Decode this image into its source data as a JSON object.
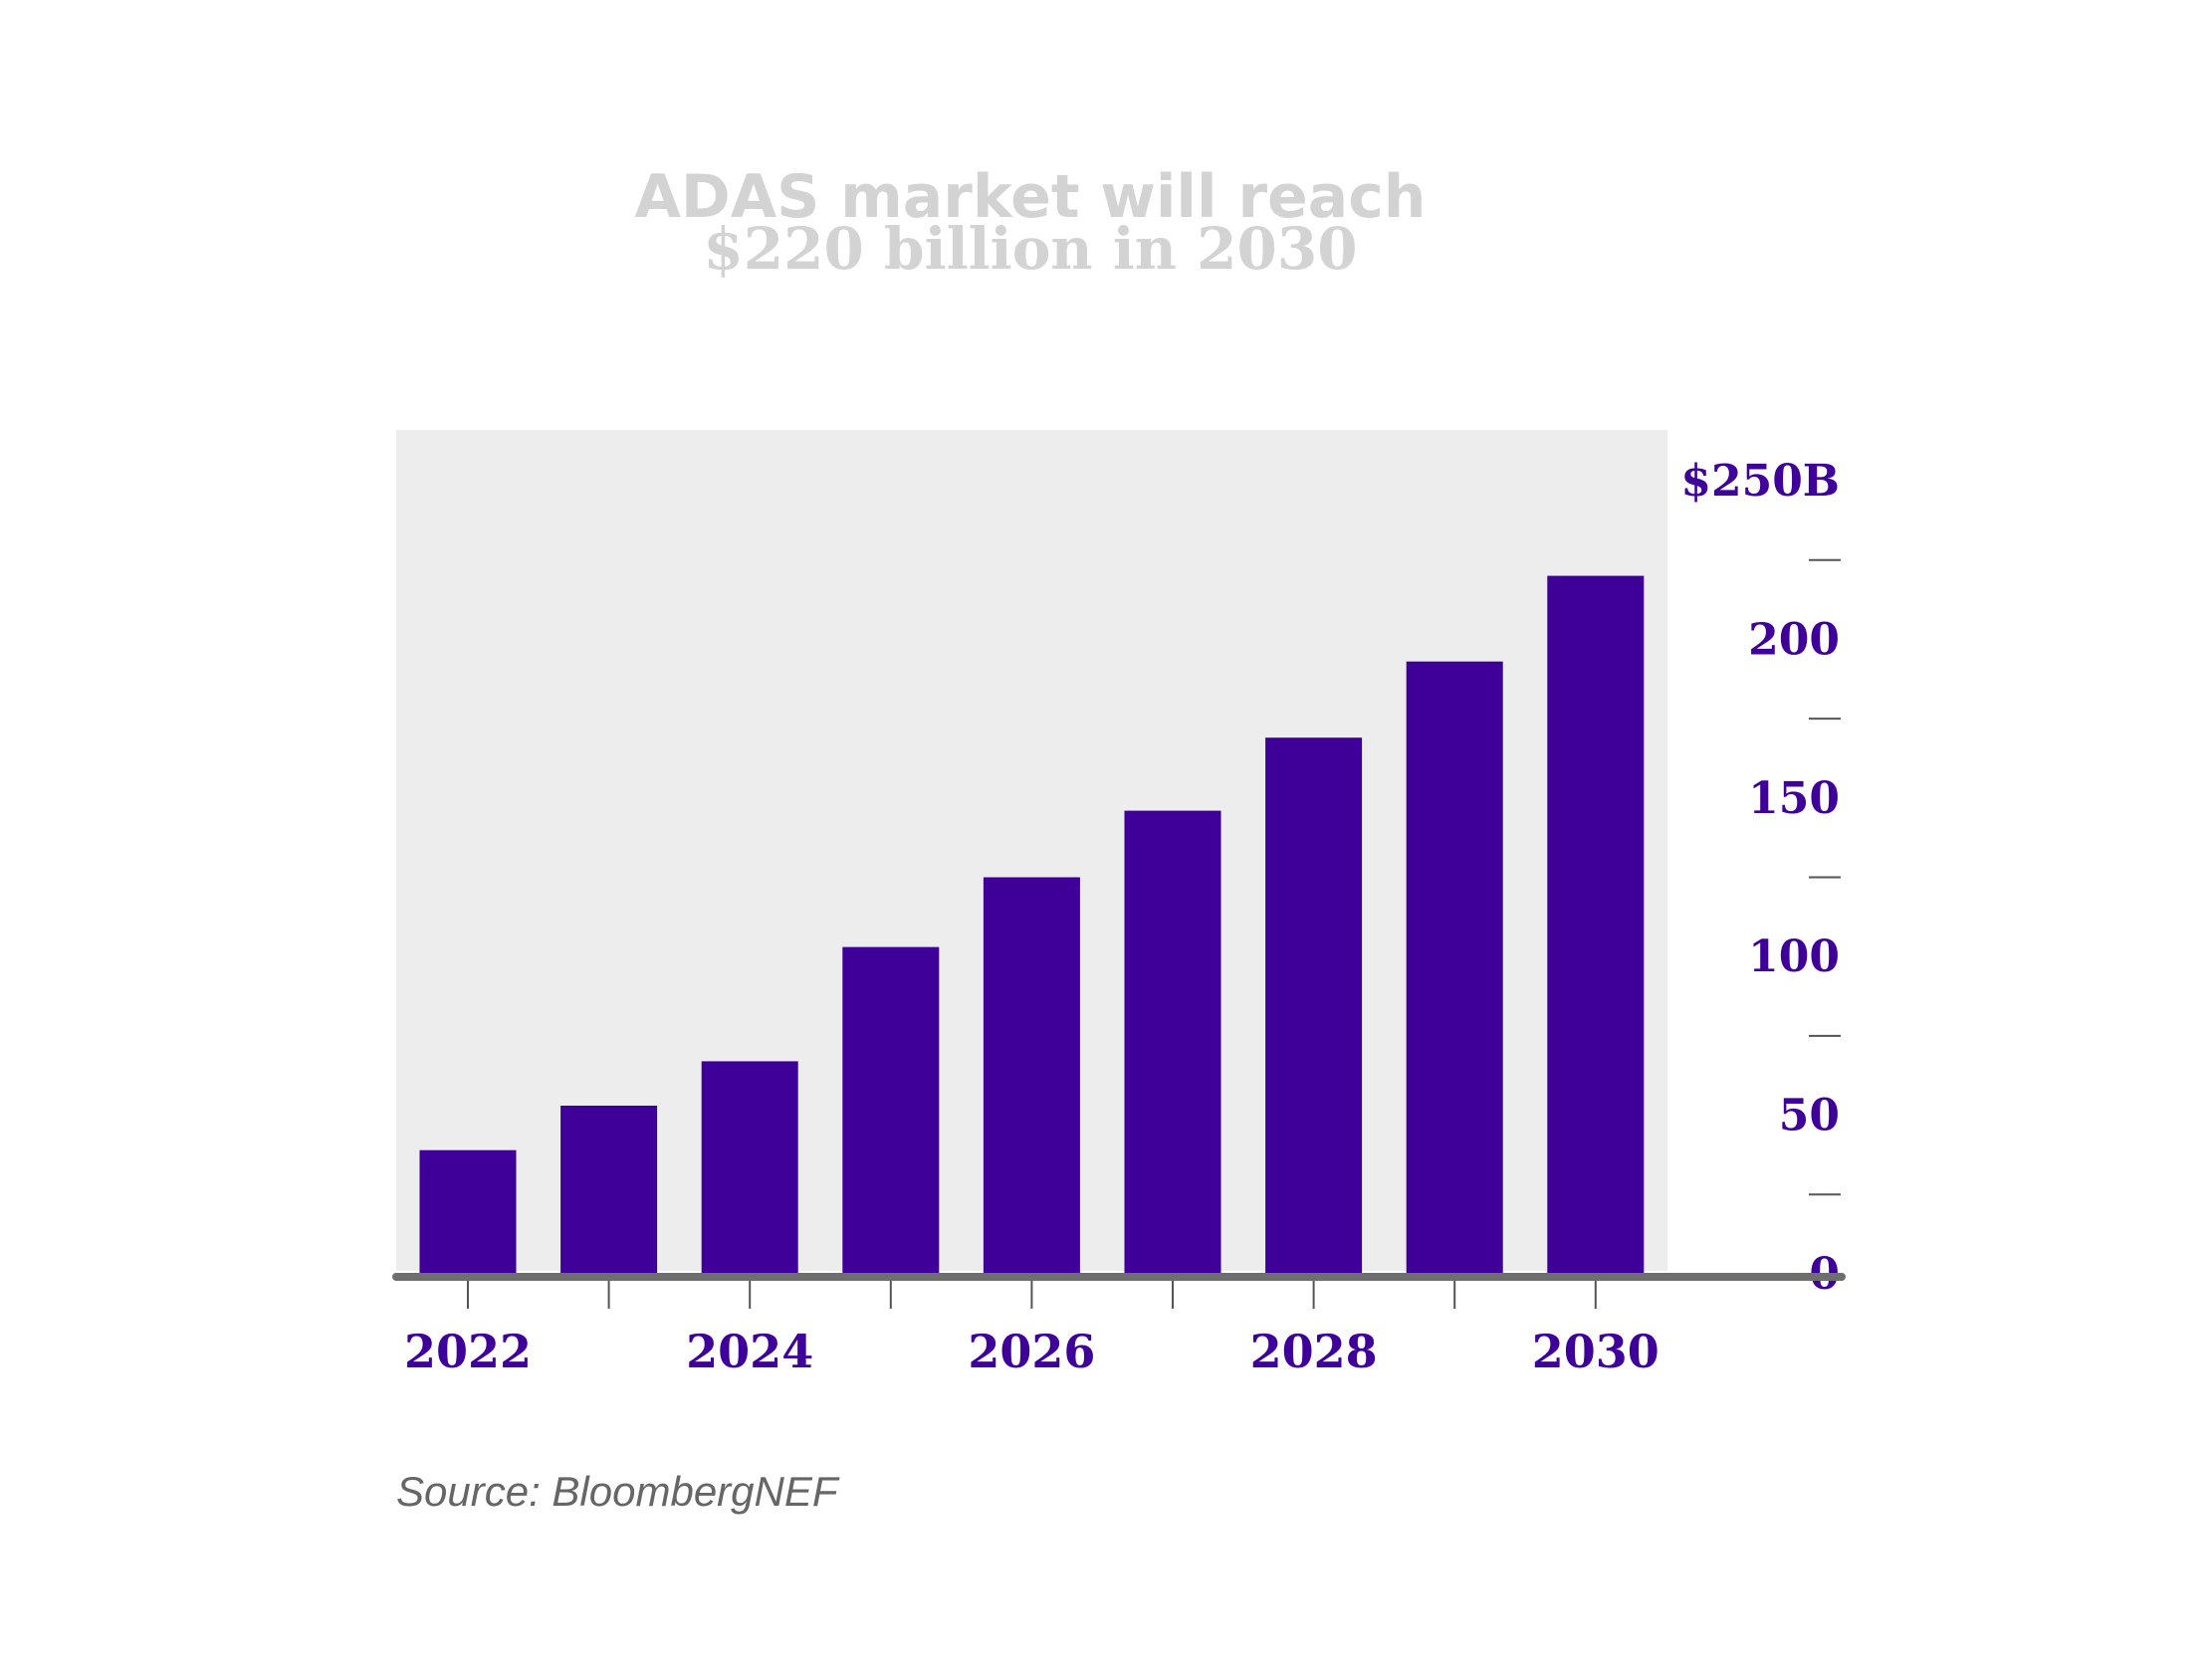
{
  "colors": {
    "bar": "#3f0099",
    "plot_background": "#ededed",
    "baseline": "#6e6e6e",
    "title": "#d3d3d3",
    "tick_marks": "#555555"
  },
  "source": "Source: BloombergNEF",
  "chart_data": {
    "type": "bar",
    "title": "ADAS market will reach",
    "subtitle": "$220 billion in 2030",
    "xlabel": "",
    "ylabel": "",
    "categories": [
      "2022",
      "2023",
      "2024",
      "2025",
      "2026",
      "2027",
      "2028",
      "2029",
      "2030"
    ],
    "x_tick_labels": [
      "2022",
      "",
      "2024",
      "",
      "2026",
      "",
      "2028",
      "",
      "2030"
    ],
    "values": [
      39,
      53,
      67,
      103,
      125,
      146,
      169,
      193,
      220
    ],
    "ylim": [
      0,
      250
    ],
    "y_tick_labels": [
      {
        "value": 0,
        "label": "0"
      },
      {
        "value": 50,
        "label": "50"
      },
      {
        "value": 100,
        "label": "100"
      },
      {
        "value": 150,
        "label": "150"
      },
      {
        "value": 200,
        "label": "200"
      },
      {
        "value": 250,
        "label": "$250B"
      }
    ],
    "y_minor_ticks": [
      25,
      75,
      125,
      175,
      225
    ],
    "y_axis_position": "right",
    "grid": false,
    "legend": "none"
  }
}
